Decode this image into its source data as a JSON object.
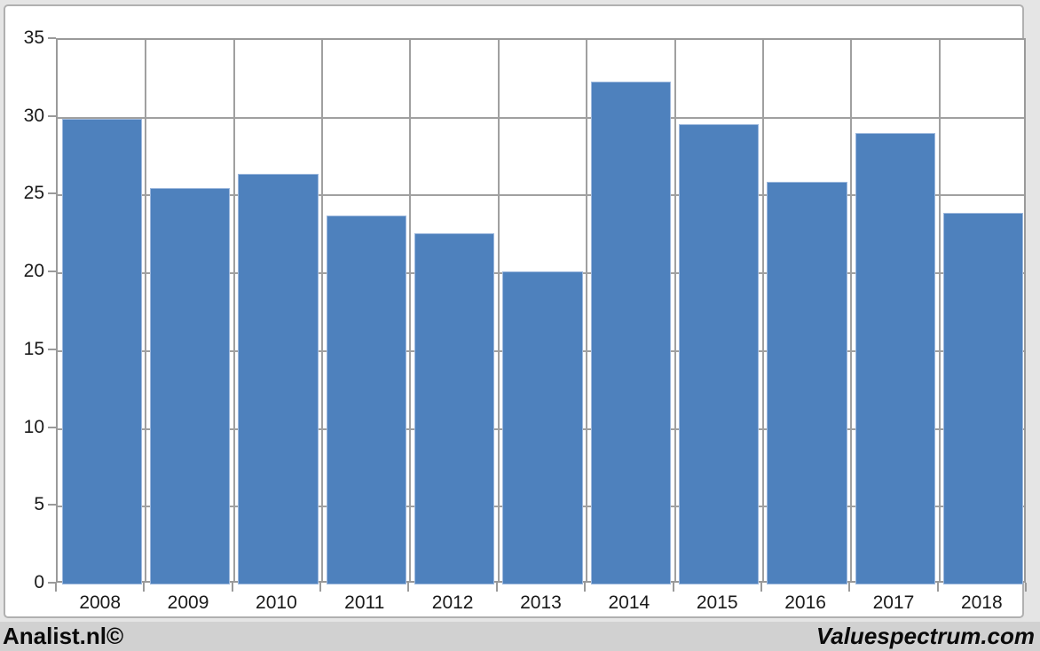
{
  "chart_data": {
    "type": "bar",
    "categories": [
      "2008",
      "2009",
      "2010",
      "2011",
      "2012",
      "2013",
      "2014",
      "2015",
      "2016",
      "2017",
      "2018"
    ],
    "values": [
      29.9,
      25.5,
      26.4,
      23.7,
      22.6,
      20.1,
      32.3,
      29.6,
      25.9,
      29.0,
      23.9
    ],
    "title": "",
    "xlabel": "",
    "ylabel": "",
    "ylim": [
      0,
      35
    ],
    "yticks": [
      0,
      5,
      10,
      15,
      20,
      25,
      30,
      35
    ],
    "grid": "on",
    "legend": "none",
    "bar_color": "#4e81bd",
    "bar_border_color": "#9db8dd",
    "gridline_color": "#a0a0a0",
    "axis_text_color": "#1a1a1a"
  },
  "footer": {
    "left_text": "Analist.nl©",
    "right_text": "Valuespectrum.com"
  }
}
